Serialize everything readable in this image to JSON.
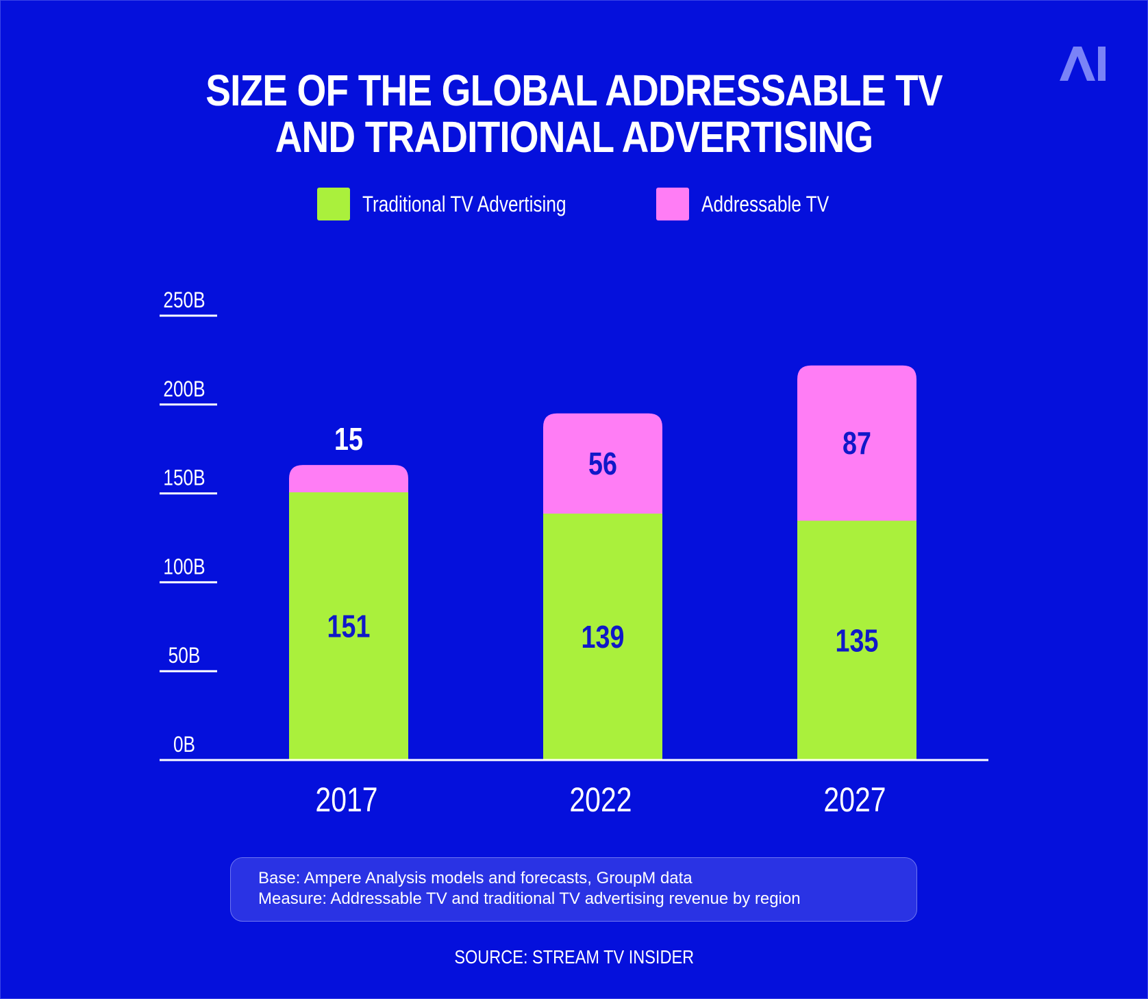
{
  "brand": {
    "logo_text": "AI"
  },
  "title_lines": [
    "SIZE OF THE GLOBAL ADDRESSABLE TV",
    "AND TRADITIONAL ADVERTISING"
  ],
  "legend": [
    {
      "label": "Traditional TV Advertising",
      "color": "#aaf03c"
    },
    {
      "label": "Addressable TV",
      "color": "#ff7df5"
    }
  ],
  "colors": {
    "background": "#0510dc",
    "label_dark": "#1018c8",
    "text": "#ffffff"
  },
  "chart_data": {
    "type": "bar",
    "stacked": true,
    "categories": [
      "2017",
      "2022",
      "2027"
    ],
    "series": [
      {
        "name": "Traditional TV Advertising",
        "values": [
          151,
          139,
          135
        ]
      },
      {
        "name": "Addressable TV",
        "values": [
          15,
          56,
          87
        ]
      }
    ],
    "yticks": [
      "0B",
      "50B",
      "100B",
      "150B",
      "200B",
      "250B"
    ],
    "ylim": [
      0,
      250
    ],
    "legend_position": "top"
  },
  "footnote": {
    "line1": "Base: Ampere Analysis models and forecasts, GroupM data",
    "line2": "Measure: Addressable TV and traditional TV advertising revenue by region"
  },
  "source": "SOURCE: STREAM TV INSIDER"
}
